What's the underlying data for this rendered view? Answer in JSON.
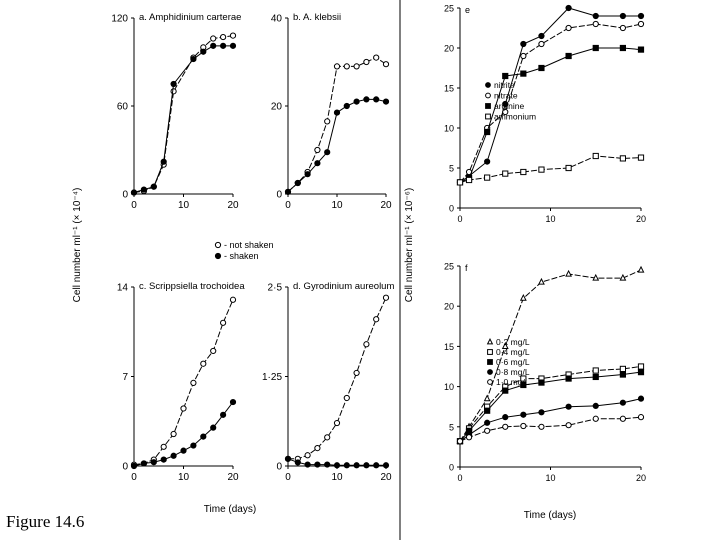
{
  "figure_caption": "Figure 14.6",
  "y_axis_label_left": "Cell number ml⁻¹ (× 10⁻⁴)",
  "y_axis_label_right": "Cell number ml⁻¹ (× 10⁻⁶)",
  "x_axis_label": "Time (days)",
  "left_legend": [
    {
      "label": "- not shaken",
      "marker": "open-circle"
    },
    {
      "label": "- shaken",
      "marker": "filled-circle"
    }
  ],
  "chart_data": [
    {
      "type": "line",
      "panel": "a",
      "title": "a. Amphidinium carterae",
      "xlim": [
        0,
        20
      ],
      "ylim": [
        0,
        120
      ],
      "xticks": [
        0,
        10,
        20
      ],
      "yticks": [
        0,
        60,
        120
      ],
      "ytick_labels": [
        "0",
        "60",
        "120"
      ],
      "series": [
        {
          "name": "not shaken",
          "marker": "open-circle",
          "x": [
            0,
            2,
            4,
            6,
            8,
            12,
            14,
            16,
            18,
            20
          ],
          "y": [
            1,
            2,
            5,
            20,
            70,
            93,
            100,
            106,
            107,
            108
          ]
        },
        {
          "name": "shaken",
          "marker": "filled-circle",
          "x": [
            0,
            2,
            4,
            6,
            8,
            12,
            14,
            16,
            18,
            20
          ],
          "y": [
            1,
            3,
            5,
            22,
            75,
            92,
            97,
            101,
            101,
            101
          ]
        }
      ]
    },
    {
      "type": "line",
      "panel": "b",
      "title": "b. A. klebsii",
      "xlim": [
        0,
        20
      ],
      "ylim": [
        0,
        40
      ],
      "xticks": [
        0,
        10,
        20
      ],
      "yticks": [
        0,
        20,
        40
      ],
      "ytick_labels": [
        "0",
        "20",
        "40"
      ],
      "series": [
        {
          "name": "not shaken",
          "marker": "open-circle",
          "x": [
            0,
            2,
            4,
            6,
            8,
            10,
            12,
            14,
            16,
            18,
            20
          ],
          "y": [
            0.5,
            2.5,
            5,
            10,
            16.5,
            29,
            29,
            29,
            30,
            31,
            29.5
          ]
        },
        {
          "name": "shaken",
          "marker": "filled-circle",
          "x": [
            0,
            2,
            4,
            6,
            8,
            10,
            12,
            14,
            16,
            18,
            20
          ],
          "y": [
            0.5,
            2.5,
            4.5,
            7,
            9.5,
            18.5,
            20,
            21,
            21.5,
            21.5,
            21
          ]
        }
      ]
    },
    {
      "type": "line",
      "panel": "c",
      "title": "c. Scrippsiella trochoidea",
      "xlim": [
        0,
        20
      ],
      "ylim": [
        0,
        14
      ],
      "xticks": [
        0,
        10,
        20
      ],
      "yticks": [
        0,
        7,
        14
      ],
      "ytick_labels": [
        "0",
        "7",
        "14"
      ],
      "series": [
        {
          "name": "not shaken",
          "marker": "open-circle",
          "x": [
            0,
            2,
            4,
            6,
            8,
            10,
            12,
            14,
            16,
            18,
            20
          ],
          "y": [
            0.1,
            0.2,
            0.5,
            1.5,
            2.5,
            4.5,
            6.5,
            8,
            9,
            11.2,
            13
          ]
        },
        {
          "name": "shaken",
          "marker": "filled-circle",
          "x": [
            0,
            2,
            4,
            6,
            8,
            10,
            12,
            14,
            16,
            18,
            20
          ],
          "y": [
            0,
            0.2,
            0.3,
            0.5,
            0.8,
            1.2,
            1.6,
            2.3,
            3,
            4,
            5
          ]
        }
      ]
    },
    {
      "type": "line",
      "panel": "d",
      "title": "d. Gyrodinium aureolum",
      "xlim": [
        0,
        20
      ],
      "ylim": [
        0,
        2.5
      ],
      "xticks": [
        0,
        10,
        20
      ],
      "yticks": [
        0,
        1.25,
        2.5
      ],
      "ytick_labels": [
        "0",
        "1·25",
        "2·5"
      ],
      "series": [
        {
          "name": "not shaken",
          "marker": "open-circle",
          "x": [
            0,
            2,
            4,
            6,
            8,
            10,
            12,
            14,
            16,
            18,
            20
          ],
          "y": [
            0.1,
            0.1,
            0.15,
            0.25,
            0.4,
            0.6,
            0.95,
            1.3,
            1.7,
            2.05,
            2.35
          ]
        },
        {
          "name": "shaken",
          "marker": "filled-circle",
          "x": [
            0,
            2,
            4,
            6,
            8,
            10,
            12,
            14,
            16,
            18,
            20
          ],
          "y": [
            0.1,
            0.05,
            0.02,
            0.02,
            0.02,
            0.01,
            0.01,
            0.01,
            0.01,
            0.01,
            0.01
          ]
        }
      ]
    },
    {
      "type": "line",
      "panel": "e",
      "title": "e",
      "xlim": [
        0,
        20
      ],
      "ylim": [
        0,
        25
      ],
      "xticks": [
        0,
        10,
        20
      ],
      "yticks": [
        0,
        5,
        10,
        15,
        20,
        25
      ],
      "ytick_labels": [
        "0",
        "5",
        "10",
        "15",
        "20",
        "25"
      ],
      "series": [
        {
          "name": "nitrite",
          "marker": "filled-circle",
          "x": [
            0,
            1,
            3,
            5,
            7,
            9,
            12,
            15,
            18,
            20
          ],
          "y": [
            3.2,
            4,
            5.8,
            13,
            20.5,
            21.5,
            25,
            24,
            24,
            24
          ]
        },
        {
          "name": "nitrate",
          "marker": "open-circle",
          "x": [
            0,
            1,
            3,
            5,
            7,
            9,
            12,
            15,
            18,
            20
          ],
          "y": [
            3.2,
            4.5,
            10,
            12,
            19,
            20.5,
            22.5,
            23,
            22.5,
            23
          ]
        },
        {
          "name": "arginine",
          "marker": "filled-square",
          "x": [
            0,
            1,
            3,
            5,
            7,
            9,
            12,
            15,
            18,
            20
          ],
          "y": [
            3.2,
            3.7,
            9.5,
            16.5,
            16.8,
            17.5,
            19,
            20,
            20,
            19.8
          ]
        },
        {
          "name": "ammonium",
          "marker": "open-square",
          "x": [
            0,
            1,
            3,
            5,
            7,
            9,
            12,
            15,
            18,
            20
          ],
          "y": [
            3.2,
            3.5,
            3.8,
            4.3,
            4.5,
            4.8,
            5,
            6.5,
            6.2,
            6.3
          ]
        }
      ]
    },
    {
      "type": "line",
      "panel": "f",
      "title": "f",
      "xlim": [
        0,
        20
      ],
      "ylim": [
        0,
        25
      ],
      "xticks": [
        0,
        10,
        20
      ],
      "yticks": [
        0,
        5,
        10,
        15,
        20,
        25
      ],
      "ytick_labels": [
        "0",
        "5",
        "10",
        "15",
        "20",
        "25"
      ],
      "series": [
        {
          "name": "0·2 mg/L",
          "marker": "open-triangle",
          "x": [
            0,
            1,
            3,
            5,
            7,
            9,
            12,
            15,
            18,
            20
          ],
          "y": [
            3.2,
            5,
            8.5,
            15,
            21,
            23,
            24,
            23.5,
            23.5,
            24.5
          ]
        },
        {
          "name": "0·4 mg/L",
          "marker": "open-square",
          "x": [
            0,
            1,
            3,
            5,
            7,
            9,
            12,
            15,
            18,
            20
          ],
          "y": [
            3.2,
            4.8,
            7.5,
            10,
            11,
            11,
            11.5,
            12,
            12.2,
            12.5
          ]
        },
        {
          "name": "0·6 mg/L",
          "marker": "filled-square",
          "x": [
            0,
            1,
            3,
            5,
            7,
            9,
            12,
            15,
            18,
            20
          ],
          "y": [
            3.2,
            4.5,
            7,
            9.5,
            10.2,
            10.5,
            11,
            11.2,
            11.5,
            11.8
          ]
        },
        {
          "name": "0·8 mg/L",
          "marker": "filled-circle",
          "x": [
            0,
            1,
            3,
            5,
            7,
            9,
            12,
            15,
            18,
            20
          ],
          "y": [
            3.2,
            4,
            5.5,
            6.2,
            6.5,
            6.8,
            7.5,
            7.6,
            8,
            8.5
          ]
        },
        {
          "name": "1·0 mg/L",
          "marker": "open-circle",
          "x": [
            0,
            1,
            3,
            5,
            7,
            9,
            12,
            15,
            18,
            20
          ],
          "y": [
            3.2,
            3.7,
            4.5,
            5,
            5.1,
            5,
            5.2,
            6,
            6,
            6.2
          ]
        }
      ]
    }
  ]
}
